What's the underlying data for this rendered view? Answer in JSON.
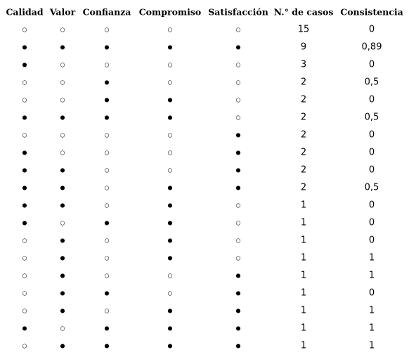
{
  "table": {
    "headers": [
      "Calidad",
      "Valor",
      "Confianza",
      "Compromiso",
      "Satisfacción",
      "N.° de casos",
      "Consistencia"
    ],
    "rows": [
      [
        "○",
        "○",
        "○",
        "○",
        "○",
        "15",
        "0"
      ],
      [
        "●",
        "●",
        "●",
        "●",
        "●",
        "9",
        "0,89"
      ],
      [
        "●",
        "○",
        "○",
        "○",
        "○",
        "3",
        "0"
      ],
      [
        "○",
        "○",
        "●",
        "○",
        "○",
        "2",
        "0,5"
      ],
      [
        "○",
        "○",
        "●",
        "●",
        "○",
        "2",
        "0"
      ],
      [
        "●",
        "●",
        "●",
        "●",
        "○",
        "2",
        "0,5"
      ],
      [
        "○",
        "○",
        "○",
        "○",
        "●",
        "2",
        "0"
      ],
      [
        "●",
        "○",
        "○",
        "○",
        "●",
        "2",
        "0"
      ],
      [
        "●",
        "●",
        "○",
        "○",
        "●",
        "2",
        "0"
      ],
      [
        "●",
        "●",
        "○",
        "●",
        "●",
        "2",
        "0,5"
      ],
      [
        "●",
        "●",
        "○",
        "●",
        "○",
        "1",
        "0"
      ],
      [
        "●",
        "○",
        "●",
        "●",
        "○",
        "1",
        "0"
      ],
      [
        "○",
        "●",
        "○",
        "●",
        "○",
        "1",
        "0"
      ],
      [
        "○",
        "●",
        "○",
        "●",
        "○",
        "1",
        "1"
      ],
      [
        "○",
        "●",
        "○",
        "○",
        "●",
        "1",
        "1"
      ],
      [
        "○",
        "●",
        "●",
        "○",
        "●",
        "1",
        "0"
      ],
      [
        "○",
        "●",
        "○",
        "●",
        "●",
        "1",
        "1"
      ],
      [
        "●",
        "○",
        "●",
        "●",
        "●",
        "1",
        "1"
      ],
      [
        "○",
        "●",
        "●",
        "●",
        "●",
        "1",
        "1"
      ]
    ]
  }
}
